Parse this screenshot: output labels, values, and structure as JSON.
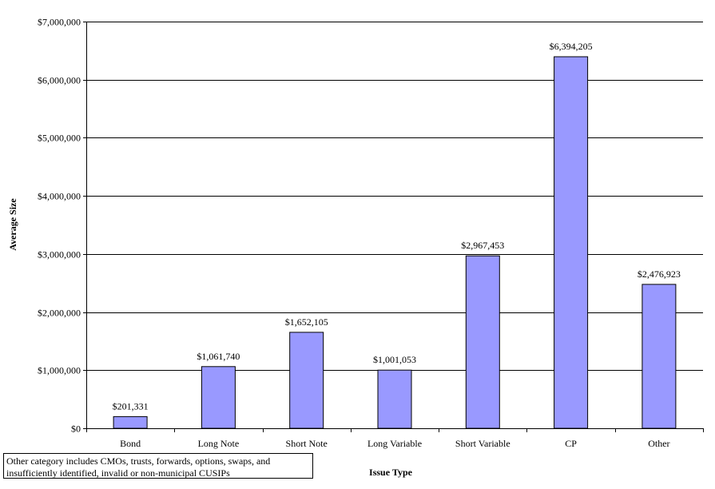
{
  "chart_data": {
    "type": "bar",
    "categories": [
      "Bond",
      "Long Note",
      "Short Note",
      "Long Variable",
      "Short Variable",
      "CP",
      "Other"
    ],
    "values": [
      201331,
      1061740,
      1652105,
      1001053,
      2967453,
      6394205,
      2476923
    ],
    "data_labels": [
      "$201,331",
      "$1,061,740",
      "$1,652,105",
      "$1,001,053",
      "$2,967,453",
      "$6,394,205",
      "$2,476,923"
    ],
    "xlabel": "Issue Type",
    "ylabel": "Average Size",
    "ylim": [
      0,
      7000000
    ],
    "y_ticks": [
      0,
      1000000,
      2000000,
      3000000,
      4000000,
      5000000,
      6000000,
      7000000
    ],
    "y_tick_labels": [
      "$0",
      "$1,000,000",
      "$2,000,000",
      "$3,000,000",
      "$4,000,000",
      "$5,000,000",
      "$6,000,000",
      "$7,000,000"
    ],
    "grid": true,
    "bar_color": "#9999ff",
    "legend": "none"
  },
  "footnote": {
    "line1": "Other category includes CMOs, trusts, forwards, options, swaps, and",
    "line2": "insufficiently identified, invalid or non-municipal CUSIPs"
  }
}
